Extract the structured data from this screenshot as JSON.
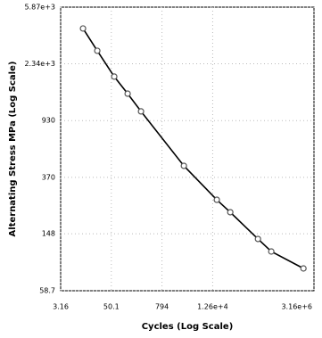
{
  "chart_data": {
    "type": "line",
    "xlabel": "Cycles (Log Scale)",
    "ylabel": "Alternating Stress MPa  (Log Scale)",
    "xscale": "log",
    "yscale": "log",
    "xlim": [
      3.16,
      3160000
    ],
    "xticks": [
      3.16,
      50.1,
      794,
      {
        "value": 12600,
        "label": "1.26e+4"
      },
      {
        "value": 3160000,
        "label": "3.16e+6"
      }
    ],
    "ylim": [
      58.7,
      5870
    ],
    "yticks": [
      58.7,
      148,
      370,
      930,
      {
        "value": 2340,
        "label": "2.34e+3"
      },
      {
        "value": 5870,
        "label": "5.87e+3"
      }
    ],
    "grid": true,
    "color": "#000000",
    "marker_color": "#555555",
    "x": [
      10.7,
      23.3,
      58.7,
      122,
      253,
      2620,
      15800,
      32900,
      149000,
      308000,
      1780000
    ],
    "values": [
      4150,
      2890,
      1900,
      1440,
      1080,
      446,
      257,
      210,
      136,
      111,
      84.3
    ]
  }
}
